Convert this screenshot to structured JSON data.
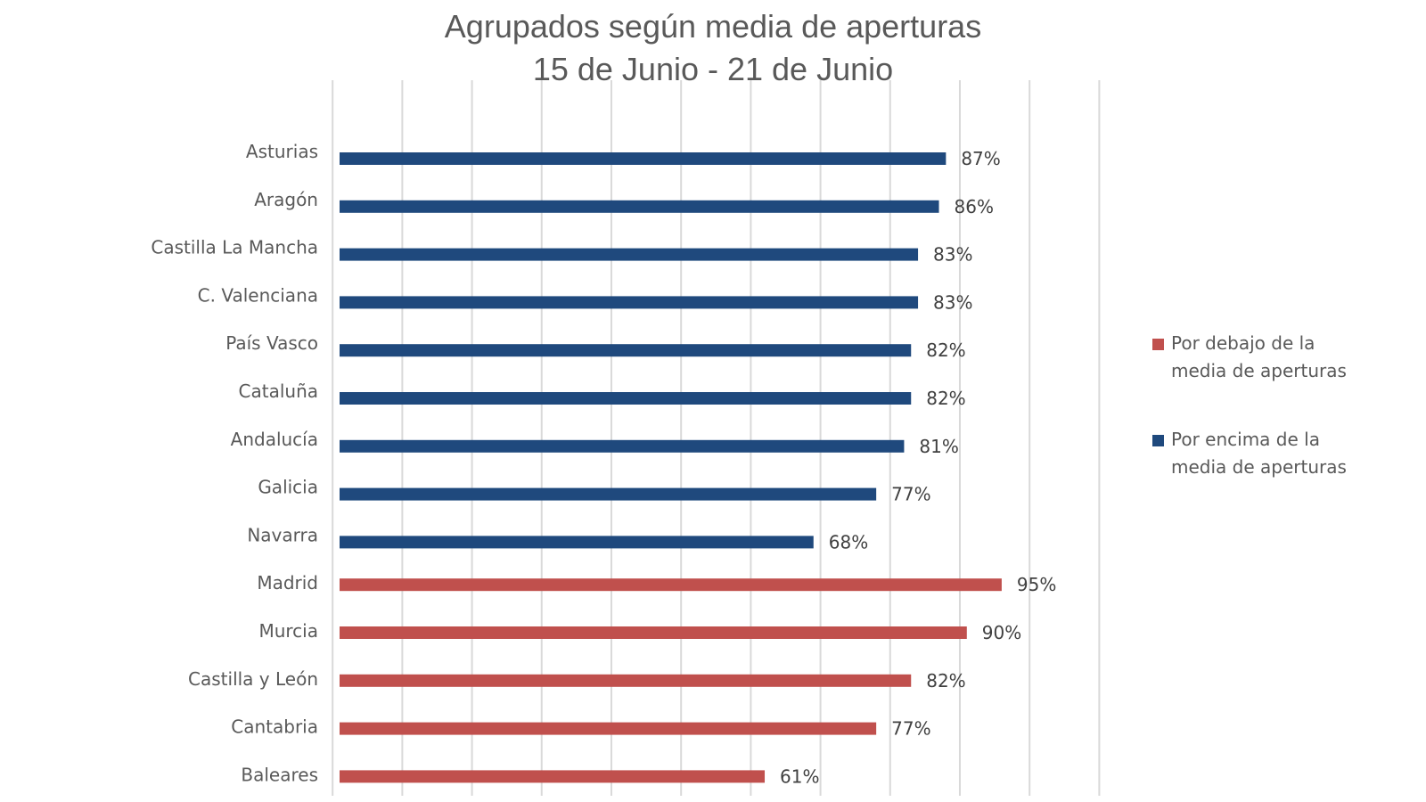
{
  "chart_data": {
    "type": "bar",
    "orientation": "horizontal",
    "title_lines": [
      "Agrupados según media de aperturas",
      "15 de Junio - 21 de Junio"
    ],
    "xlim": [
      0,
      110
    ],
    "grid": true,
    "legend_position": "right",
    "series": [
      {
        "name": "Por encima de la media de aperturas",
        "legend_lines": [
          "Por encima de la",
          "media de aperturas"
        ],
        "color": "#1f497d",
        "categories": [
          "Asturias",
          "Aragón",
          "Castilla La Mancha",
          "C. Valenciana",
          "País Vasco",
          "Cataluña",
          "Andalucía",
          "Galicia",
          "Navarra"
        ],
        "values": [
          87,
          86,
          83,
          83,
          82,
          82,
          81,
          77,
          68
        ],
        "labels": [
          "87%",
          "86%",
          "83%",
          "83%",
          "82%",
          "82%",
          "81%",
          "77%",
          "68%"
        ]
      },
      {
        "name": "Por debajo de la media de aperturas",
        "legend_lines": [
          "Por debajo de la",
          "media de aperturas"
        ],
        "color": "#c0504d",
        "categories": [
          "Madrid",
          "Murcia",
          "Castilla y León",
          "Cantabria",
          "Baleares"
        ],
        "values": [
          95,
          90,
          82,
          77,
          61
        ],
        "labels": [
          "95%",
          "90%",
          "82%",
          "77%",
          "61%"
        ]
      }
    ],
    "legend_order": [
      1,
      0
    ]
  }
}
